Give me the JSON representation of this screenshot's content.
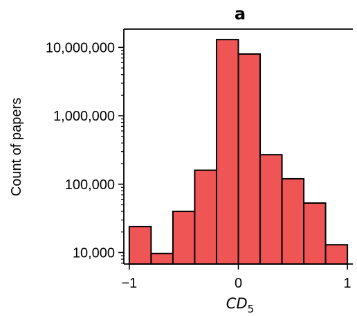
{
  "chart_data": {
    "type": "bar",
    "title": "a",
    "xlabel": "CD",
    "xlabel_subscript": "5",
    "ylabel": "Count of papers",
    "yscale": "log",
    "xlim": [
      -1.05,
      1.05
    ],
    "ylim": [
      6800,
      18500000
    ],
    "x_ticks": [
      {
        "value": -1,
        "label": "−1"
      },
      {
        "value": 0,
        "label": "0"
      },
      {
        "value": 1,
        "label": "1"
      }
    ],
    "y_ticks": [
      {
        "value": 10000,
        "label": "10,000"
      },
      {
        "value": 100000,
        "label": "100,000"
      },
      {
        "value": 1000000,
        "label": "1,000,000"
      },
      {
        "value": 10000000,
        "label": "10,000,000"
      }
    ],
    "bins": [
      {
        "left": -1.0,
        "right": -0.8,
        "count": 24000
      },
      {
        "left": -0.8,
        "right": -0.6,
        "count": 9700
      },
      {
        "left": -0.6,
        "right": -0.4,
        "count": 40000
      },
      {
        "left": -0.4,
        "right": -0.2,
        "count": 160000
      },
      {
        "left": -0.2,
        "right": 0.0,
        "count": 13000000
      },
      {
        "left": 0.0,
        "right": 0.2,
        "count": 8000000
      },
      {
        "left": 0.2,
        "right": 0.4,
        "count": 270000
      },
      {
        "left": 0.4,
        "right": 0.6,
        "count": 120000
      },
      {
        "left": 0.6,
        "right": 0.8,
        "count": 53000
      },
      {
        "left": 0.8,
        "right": 1.0,
        "count": 13000
      }
    ],
    "colors": {
      "bar_fill": "#ef5555",
      "bar_edge": "#000000"
    },
    "grid": false,
    "spines": [
      "left",
      "bottom"
    ]
  }
}
